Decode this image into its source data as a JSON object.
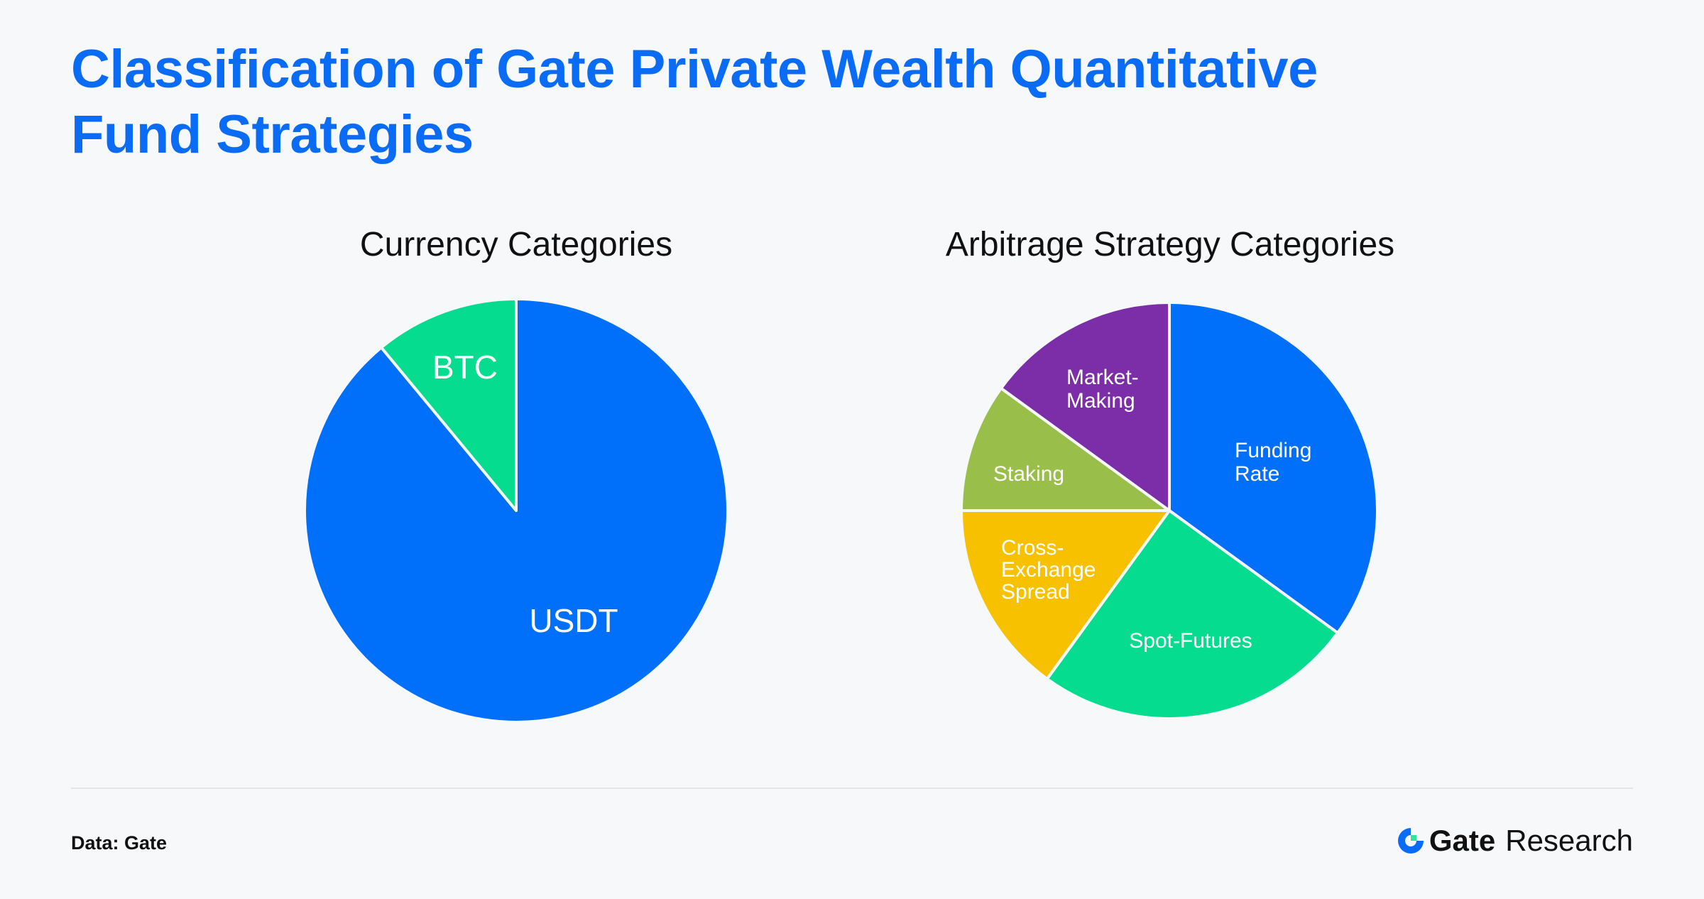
{
  "title_lines": [
    "Classification of Gate Private Wealth Quantitative",
    "Fund Strategies"
  ],
  "footer": {
    "source": "Data: Gate",
    "logo_brand": "Gate",
    "logo_suffix": "Research"
  },
  "chart_data": [
    {
      "type": "pie",
      "title": "Currency Categories",
      "start": "top",
      "direction": "clockwise",
      "slices": [
        {
          "label": "USDT",
          "value": 89,
          "color": "#006ffa"
        },
        {
          "label": "BTC",
          "value": 11,
          "color": "#05dc8f"
        }
      ]
    },
    {
      "type": "pie",
      "title": "Arbitrage Strategy Categories",
      "start": "top",
      "direction": "clockwise",
      "slices": [
        {
          "label": "Funding Rate",
          "value": 35,
          "color": "#006ffa"
        },
        {
          "label": "Spot-Futures",
          "value": 25,
          "color": "#05dc8f"
        },
        {
          "label": "Cross-Exchange Spread",
          "value": 15,
          "color": "#f7c100"
        },
        {
          "label": "Staking",
          "value": 10,
          "color": "#99bf4a"
        },
        {
          "label": "Market-Making",
          "value": 15,
          "color": "#7b2ea8"
        }
      ]
    }
  ]
}
